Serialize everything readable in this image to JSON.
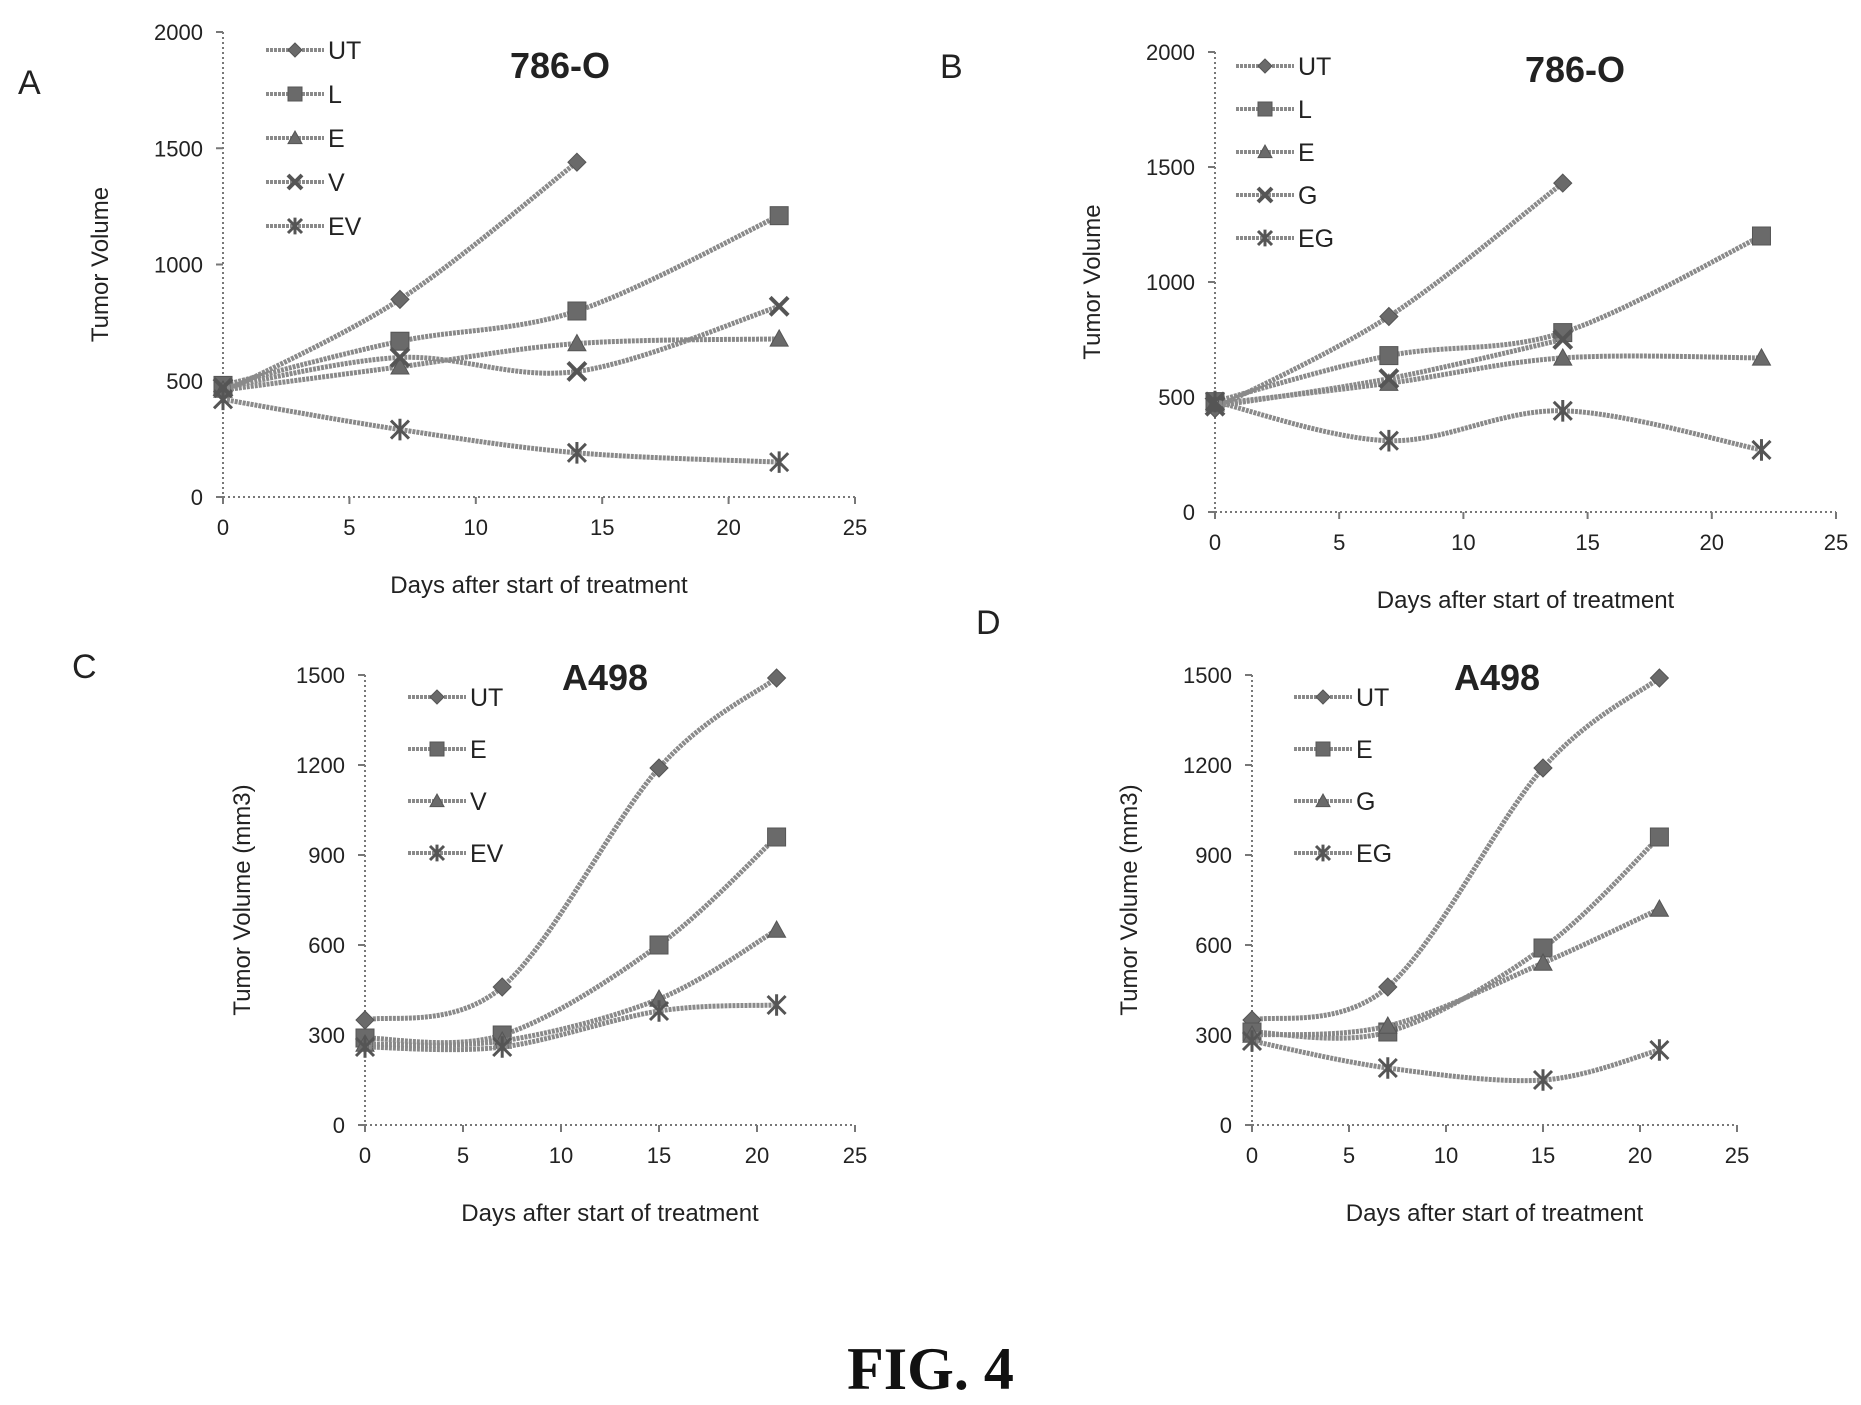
{
  "figure": {
    "caption": "FIG. 4",
    "panel_letters": [
      "A",
      "B",
      "C",
      "D"
    ]
  },
  "colors": {
    "line": "#8a8a8a",
    "marker": "#6a6a6a",
    "axis": "#777777",
    "text": "#222222"
  },
  "chart_data": [
    {
      "panel": "A",
      "type": "line",
      "title": "786-O",
      "xlabel": "Days after start of treatment",
      "ylabel": "Tumor Volume",
      "xlim": [
        0,
        25
      ],
      "ylim": [
        0,
        2000
      ],
      "xticks": [
        0,
        5,
        10,
        15,
        20,
        25
      ],
      "yticks": [
        0,
        500,
        1000,
        1500,
        2000
      ],
      "legend_position": "top-left",
      "series": [
        {
          "name": "UT",
          "marker": "diamond",
          "x": [
            0,
            7,
            14
          ],
          "values": [
            450,
            850,
            1440
          ]
        },
        {
          "name": "L",
          "marker": "square",
          "x": [
            0,
            7,
            14,
            22
          ],
          "values": [
            480,
            670,
            800,
            1210
          ]
        },
        {
          "name": "E",
          "marker": "triangle",
          "x": [
            0,
            7,
            14,
            22
          ],
          "values": [
            460,
            560,
            660,
            680
          ]
        },
        {
          "name": "V",
          "marker": "x",
          "x": [
            0,
            7,
            14,
            22
          ],
          "values": [
            470,
            600,
            540,
            820
          ]
        },
        {
          "name": "EV",
          "marker": "star",
          "x": [
            0,
            7,
            14,
            22
          ],
          "values": [
            420,
            290,
            190,
            150
          ]
        }
      ]
    },
    {
      "panel": "B",
      "type": "line",
      "title": "786-O",
      "xlabel": "Days after start of treatment",
      "ylabel": "Tumor Volume",
      "xlim": [
        0,
        25
      ],
      "ylim": [
        0,
        2000
      ],
      "xticks": [
        0,
        5,
        10,
        15,
        20,
        25
      ],
      "yticks": [
        0,
        500,
        1000,
        1500,
        2000
      ],
      "legend_position": "top-left",
      "series": [
        {
          "name": "UT",
          "marker": "diamond",
          "x": [
            0,
            7,
            14
          ],
          "values": [
            450,
            850,
            1430
          ]
        },
        {
          "name": "L",
          "marker": "square",
          "x": [
            0,
            7,
            14,
            22
          ],
          "values": [
            480,
            680,
            780,
            1200
          ]
        },
        {
          "name": "E",
          "marker": "triangle",
          "x": [
            0,
            7,
            14,
            22
          ],
          "values": [
            470,
            560,
            670,
            670
          ]
        },
        {
          "name": "G",
          "marker": "x",
          "x": [
            0,
            7,
            14
          ],
          "values": [
            460,
            580,
            750
          ]
        },
        {
          "name": "EG",
          "marker": "star",
          "x": [
            0,
            7,
            14,
            22
          ],
          "values": [
            480,
            310,
            440,
            270
          ]
        }
      ]
    },
    {
      "panel": "C",
      "type": "line",
      "title": "A498",
      "xlabel": "Days after start of treatment",
      "ylabel": "Tumor Volume (mm3)",
      "xlim": [
        0,
        25
      ],
      "ylim": [
        0,
        1500
      ],
      "xticks": [
        0,
        5,
        10,
        15,
        20,
        25
      ],
      "yticks": [
        0,
        300,
        600,
        900,
        1200,
        1500
      ],
      "legend_position": "top-left",
      "series": [
        {
          "name": "UT",
          "marker": "diamond",
          "x": [
            0,
            7,
            15,
            21
          ],
          "values": [
            350,
            460,
            1190,
            1490
          ]
        },
        {
          "name": "E",
          "marker": "square",
          "x": [
            0,
            7,
            15,
            21
          ],
          "values": [
            290,
            300,
            600,
            960
          ]
        },
        {
          "name": "V",
          "marker": "triangle",
          "x": [
            0,
            7,
            15,
            21
          ],
          "values": [
            270,
            280,
            420,
            650
          ]
        },
        {
          "name": "EV",
          "marker": "star",
          "x": [
            0,
            7,
            15,
            21
          ],
          "values": [
            260,
            260,
            380,
            400
          ]
        }
      ]
    },
    {
      "panel": "D",
      "type": "line",
      "title": "A498",
      "xlabel": "Days after start of treatment",
      "ylabel": "Tumor Volume (mm3)",
      "xlim": [
        0,
        25
      ],
      "ylim": [
        0,
        1500
      ],
      "xticks": [
        0,
        5,
        10,
        15,
        20,
        25
      ],
      "yticks": [
        0,
        300,
        600,
        900,
        1200,
        1500
      ],
      "legend_position": "top-left",
      "series": [
        {
          "name": "UT",
          "marker": "diamond",
          "x": [
            0,
            7,
            15,
            21
          ],
          "values": [
            350,
            460,
            1190,
            1490
          ]
        },
        {
          "name": "E",
          "marker": "square",
          "x": [
            0,
            7,
            15,
            21
          ],
          "values": [
            310,
            310,
            590,
            960
          ]
        },
        {
          "name": "G",
          "marker": "triangle",
          "x": [
            0,
            7,
            15,
            21
          ],
          "values": [
            300,
            330,
            540,
            720
          ]
        },
        {
          "name": "EG",
          "marker": "star",
          "x": [
            0,
            7,
            15,
            21
          ],
          "values": [
            280,
            190,
            150,
            250
          ]
        }
      ]
    }
  ]
}
